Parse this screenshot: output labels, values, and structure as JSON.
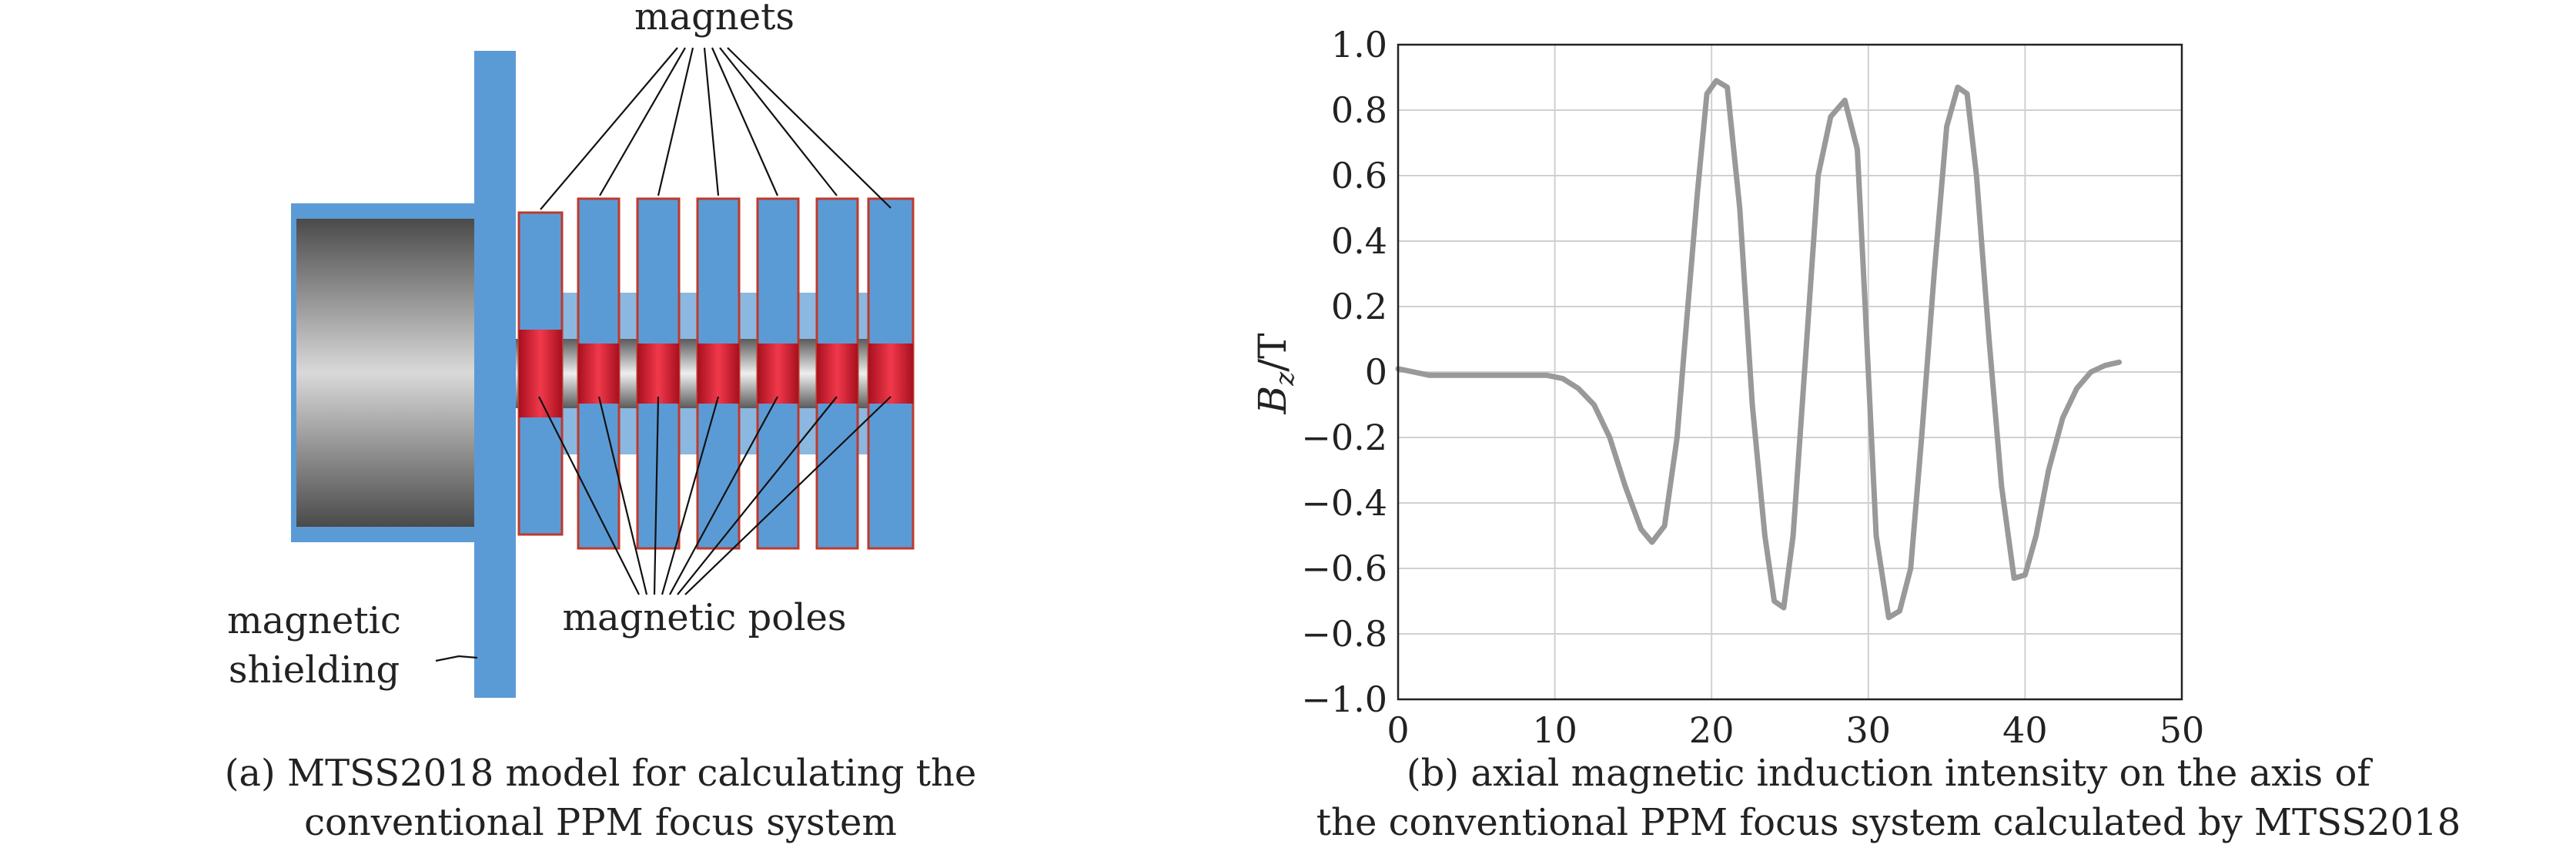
{
  "panel_a": {
    "labels": {
      "magnets": "magnets",
      "magnetic_poles": "magnetic poles",
      "magnetic": "magnetic",
      "shielding": "shielding"
    },
    "caption_line1": "(a) MTSS2018 model for calculating the",
    "caption_line2": "conventional PPM focus system",
    "colors": {
      "magnet_blue": "#5b9bd5",
      "pole_red": "#d8283a",
      "outline_red": "#c0392b"
    }
  },
  "panel_b": {
    "caption_line1": "(b) axial magnetic induction intensity on the axis of",
    "caption_line2": "the conventional PPM focus system calculated by MTSS2018"
  },
  "chart_data": {
    "type": "line",
    "ylabel_main": "B",
    "ylabel_sub": "z",
    "ylabel_unit": "/T",
    "xlim": [
      0,
      50
    ],
    "ylim": [
      -1.0,
      1.0
    ],
    "x_ticks": [
      "0",
      "10",
      "20",
      "30",
      "40",
      "50"
    ],
    "y_ticks": [
      "1.0",
      "0.8",
      "0.6",
      "0.4",
      "0.2",
      "0",
      "−0.2",
      "−0.4",
      "−0.6",
      "−0.8",
      "−1.0"
    ],
    "grid": true,
    "line_color": "#999999",
    "series": [
      {
        "x": [
          0,
          1,
          2,
          4,
          6,
          8,
          9.5,
          10.5,
          11.5,
          12.5,
          13.5,
          14.5,
          15.5,
          16.2,
          17,
          17.8,
          18.4,
          19.1,
          19.7,
          20.3,
          21,
          21.8,
          22.6,
          23.4,
          24,
          24.6,
          25.2,
          26,
          26.8,
          27.6,
          28.5,
          29.3,
          29.8,
          30.5,
          31.3,
          32,
          32.7,
          33.4,
          34.2,
          35,
          35.7,
          36.3,
          36.9,
          37.7,
          38.5,
          39.3,
          40,
          40.7,
          41.5,
          42.4,
          43.3,
          44.2,
          45.1,
          46
        ],
        "y": [
          0.01,
          0.0,
          -0.01,
          -0.01,
          -0.01,
          -0.01,
          -0.01,
          -0.02,
          -0.05,
          -0.1,
          -0.2,
          -0.35,
          -0.48,
          -0.52,
          -0.47,
          -0.2,
          0.15,
          0.55,
          0.85,
          0.89,
          0.87,
          0.5,
          -0.1,
          -0.5,
          -0.7,
          -0.72,
          -0.5,
          0.05,
          0.6,
          0.78,
          0.83,
          0.68,
          0.2,
          -0.5,
          -0.75,
          -0.73,
          -0.6,
          -0.2,
          0.3,
          0.75,
          0.87,
          0.85,
          0.6,
          0.1,
          -0.35,
          -0.63,
          -0.62,
          -0.5,
          -0.3,
          -0.14,
          -0.05,
          0.0,
          0.02,
          0.03
        ]
      }
    ]
  }
}
